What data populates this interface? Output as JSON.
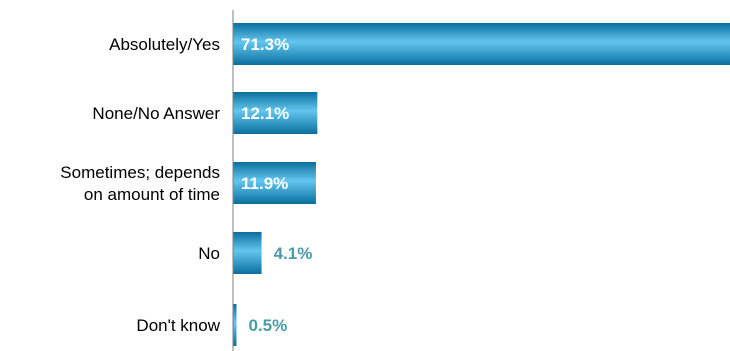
{
  "chart_data": {
    "type": "bar",
    "orientation": "horizontal",
    "categories": [
      [
        "Absolutely/Yes"
      ],
      [
        "None/No Answer"
      ],
      [
        "Sometimes; depends",
        "on amount of time"
      ],
      [
        "No"
      ],
      [
        "Don't know"
      ]
    ],
    "values": [
      71.3,
      12.1,
      11.9,
      4.1,
      0.5
    ],
    "value_labels": [
      "71.3%",
      "12.1%",
      "11.9%",
      "4.1%",
      "0.5%"
    ],
    "xlim": [
      0,
      71.3
    ],
    "grid": false,
    "legend": "none"
  },
  "colors": {
    "bar_dark": "#0a6f9e",
    "bar_mid": "#1e9fd6",
    "bar_light": "#63c6ef",
    "label_inside": "#ffffff",
    "label_outside": "#4a9ba8",
    "axis": "#7f7f7f"
  }
}
